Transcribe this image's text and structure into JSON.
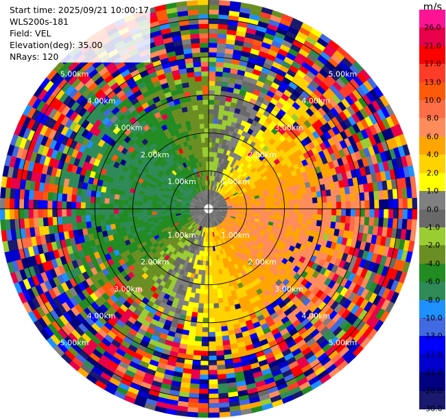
{
  "info": {
    "start_time": "Start time: 2025/09/21 10:00:17",
    "instrument": "WLS200s-181",
    "field": "Field: VEL",
    "elevation": "Elevation(deg): 35.00",
    "nrays": "NRays: 120"
  },
  "colorbar": {
    "unit": "m/s",
    "ticks": [
      "26.0",
      "21.0",
      "17.0",
      "13.0",
      "10.0",
      "8.0",
      "6.0",
      "4.0",
      "2.0",
      "1.0",
      "0.0",
      "-1.0",
      "-2.0",
      "-4.0",
      "-6.0",
      "-8.0",
      "-10.0",
      "-13.0",
      "-17.0",
      "-21.0",
      "-26.0",
      "-30.0"
    ],
    "colors": [
      "#ff1493",
      "#e8004a",
      "#ff0000",
      "#ff3c28",
      "#ff5a0a",
      "#ff6e46",
      "#ff8c5a",
      "#ffa500",
      "#ffd200",
      "#ffff00",
      "#808080",
      "#696969",
      "#9acd32",
      "#6b8e23",
      "#228b22",
      "#2e8b57",
      "#1e90ff",
      "#4169e1",
      "#0000ff",
      "#0000cd",
      "#000080",
      "#191970"
    ]
  },
  "chart_data": {
    "type": "heatmap",
    "title": "",
    "projection": "polar PPI",
    "field": "VEL",
    "units": "m/s",
    "rays": 120,
    "range_rings_km": [
      1.0,
      2.0,
      3.0,
      4.0,
      5.0
    ],
    "ring_labels": [
      "1.00km",
      "2.00km",
      "3.00km",
      "4.00km",
      "5.00km"
    ],
    "max_range_km": 5.5,
    "crosshair_lines": true,
    "colorbar_range": [
      -30.0,
      26.0
    ],
    "approx_sector_velocity_ms": [
      {
        "sector": "north-west",
        "value": -6.0
      },
      {
        "sector": "west",
        "value": -2.0
      },
      {
        "sector": "east",
        "value": 4.0
      },
      {
        "sector": "south",
        "value": 4.0
      },
      {
        "sector": "south-east",
        "value": 8.0
      },
      {
        "sector": "center",
        "value": 0.0
      }
    ]
  }
}
